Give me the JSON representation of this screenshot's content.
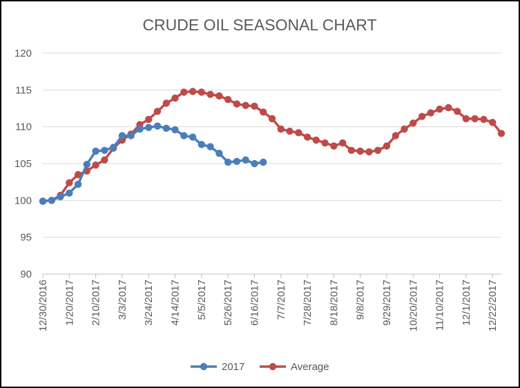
{
  "chart_data": {
    "type": "line",
    "title": "CRUDE OIL SEASONAL CHART",
    "xlabel": "",
    "ylabel": "",
    "ylim": [
      90,
      120
    ],
    "yticks": [
      90,
      95,
      100,
      105,
      110,
      115,
      120
    ],
    "xlim": [
      "2016-12-30",
      "2017-12-29"
    ],
    "xticks": [
      "12/30/2016",
      "1/20/2017",
      "2/10/2017",
      "3/3/2017",
      "3/24/2017",
      "4/14/2017",
      "5/5/2017",
      "5/26/2017",
      "6/16/2017",
      "7/7/2017",
      "7/28/2017",
      "8/18/2017",
      "9/8/2017",
      "9/29/2017",
      "10/20/2017",
      "11/10/2017",
      "12/1/2017",
      "12/22/2017"
    ],
    "grid": true,
    "legend": "bottom",
    "series": [
      {
        "name": "2017",
        "color": "#4a7ebb",
        "x": [
          "2016-12-30",
          "2017-01-06",
          "2017-01-13",
          "2017-01-20",
          "2017-01-27",
          "2017-02-03",
          "2017-02-10",
          "2017-02-17",
          "2017-02-24",
          "2017-03-03",
          "2017-03-10",
          "2017-03-17",
          "2017-03-24",
          "2017-03-31",
          "2017-04-07",
          "2017-04-14",
          "2017-04-21",
          "2017-04-28",
          "2017-05-05",
          "2017-05-12",
          "2017-05-19",
          "2017-05-26",
          "2017-06-02",
          "2017-06-09",
          "2017-06-16",
          "2017-06-23"
        ],
        "values": [
          99.9,
          100.0,
          100.5,
          101.0,
          102.2,
          104.9,
          106.7,
          106.8,
          107.2,
          108.8,
          108.8,
          109.7,
          109.9,
          110.1,
          109.8,
          109.6,
          108.8,
          108.6,
          107.6,
          107.3,
          106.4,
          105.2,
          105.3,
          105.5,
          105.0,
          105.2
        ]
      },
      {
        "name": "Average",
        "color": "#be4b48",
        "x": [
          "2016-12-30",
          "2017-01-06",
          "2017-01-13",
          "2017-01-20",
          "2017-01-27",
          "2017-02-03",
          "2017-02-10",
          "2017-02-17",
          "2017-02-24",
          "2017-03-03",
          "2017-03-10",
          "2017-03-17",
          "2017-03-24",
          "2017-03-31",
          "2017-04-07",
          "2017-04-14",
          "2017-04-21",
          "2017-04-28",
          "2017-05-05",
          "2017-05-12",
          "2017-05-19",
          "2017-05-26",
          "2017-06-02",
          "2017-06-09",
          "2017-06-16",
          "2017-06-23",
          "2017-06-30",
          "2017-07-07",
          "2017-07-14",
          "2017-07-21",
          "2017-07-28",
          "2017-08-04",
          "2017-08-11",
          "2017-08-18",
          "2017-08-25",
          "2017-09-01",
          "2017-09-08",
          "2017-09-15",
          "2017-09-22",
          "2017-09-29",
          "2017-10-06",
          "2017-10-13",
          "2017-10-20",
          "2017-10-27",
          "2017-11-03",
          "2017-11-10",
          "2017-11-17",
          "2017-11-24",
          "2017-12-01",
          "2017-12-08",
          "2017-12-15",
          "2017-12-22",
          "2017-12-29"
        ],
        "values": [
          99.9,
          100.0,
          100.7,
          102.4,
          103.5,
          104.0,
          104.8,
          105.5,
          107.1,
          108.2,
          109.0,
          110.3,
          111.0,
          112.1,
          113.2,
          113.9,
          114.7,
          114.8,
          114.7,
          114.4,
          114.2,
          113.7,
          113.1,
          112.9,
          112.8,
          112.0,
          111.1,
          109.7,
          109.4,
          109.2,
          108.6,
          108.2,
          107.8,
          107.4,
          107.8,
          106.8,
          106.7,
          106.6,
          106.8,
          107.4,
          108.8,
          109.7,
          110.5,
          111.4,
          111.9,
          112.4,
          112.6,
          112.1,
          111.1,
          111.1,
          111.0,
          110.6,
          109.1
        ]
      }
    ]
  }
}
